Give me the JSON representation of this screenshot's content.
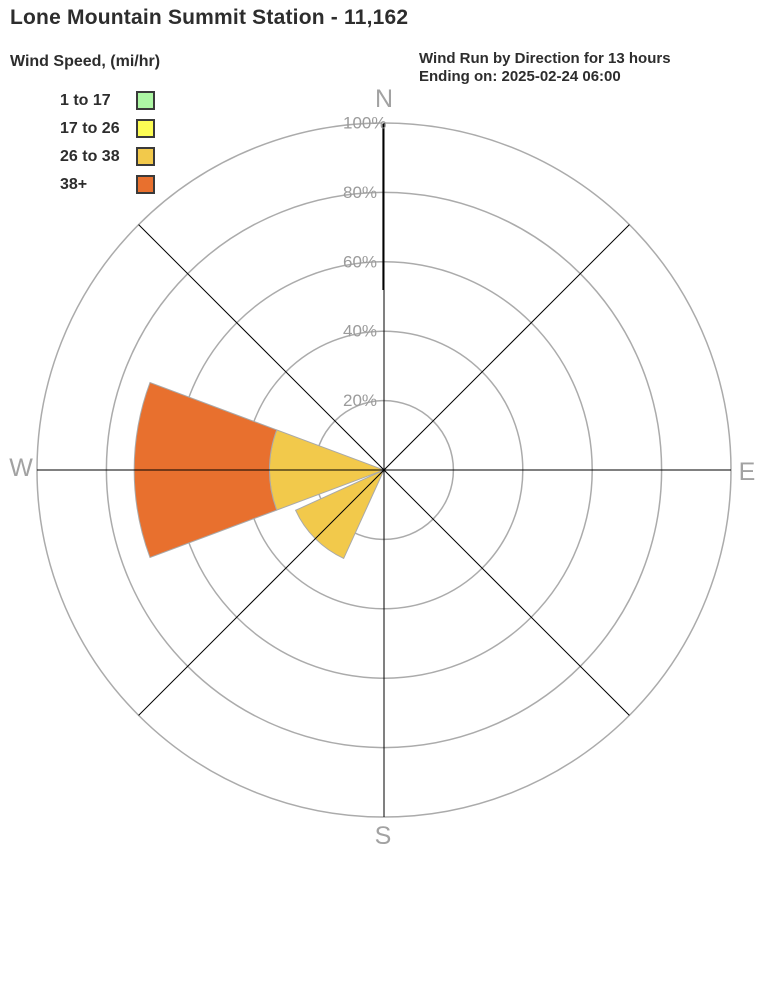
{
  "header": {
    "title": "Lone Mountain Summit Station - 11,162",
    "subtitle_line1": "Wind Run by Direction for 13 hours",
    "subtitle_line2": "Ending on: 2025-02-24 06:00"
  },
  "legend": {
    "title": "Wind Speed, (mi/hr)",
    "swatch_border_color": "#3a3a3a",
    "items": [
      {
        "label": "1 to 17",
        "color": "#adf7a4"
      },
      {
        "label": "17 to 26",
        "color": "#fdfd54"
      },
      {
        "label": "26 to 38",
        "color": "#f2c94b"
      },
      {
        "label": "38+",
        "color": "#e8702e"
      }
    ]
  },
  "chart_data": {
    "type": "wind-rose",
    "title": "Wind Run by Direction for 13 hours Ending on: 2025-02-24 06:00",
    "units": "percent of wind run",
    "ring_ticks_pct": [
      20,
      40,
      60,
      80,
      100
    ],
    "ring_tick_labels": [
      "20%",
      "40%",
      "60%",
      "80%",
      "100%"
    ],
    "rlim": [
      0,
      100
    ],
    "compass_labels": {
      "n": "N",
      "e": "E",
      "s": "S",
      "w": "W"
    },
    "directions": [
      "N",
      "NE",
      "E",
      "SE",
      "S",
      "SW",
      "W",
      "NW"
    ],
    "sector_width_deg": 41,
    "series": [
      {
        "name": "1 to 17",
        "color": "#adf7a4",
        "values_pct": [
          0,
          0,
          0,
          0,
          0,
          0,
          0,
          0
        ]
      },
      {
        "name": "17 to 26",
        "color": "#fdfd54",
        "values_pct": [
          0,
          0,
          0,
          0,
          0,
          0,
          0,
          0
        ]
      },
      {
        "name": "26 to 38",
        "color": "#f2c94b",
        "values_pct": [
          0,
          0,
          0,
          0,
          0,
          28,
          33,
          0
        ]
      },
      {
        "name": "38+",
        "color": "#e8702e",
        "values_pct": [
          0,
          0,
          0,
          0,
          0,
          0,
          39,
          0
        ]
      }
    ],
    "grid_color": "#ababab",
    "wedge_stroke_color": "#a9a9a9",
    "spoke_color": "#000000",
    "ring_label_color": "#9b9b9b",
    "compass_label_color": "#a2a2a2"
  }
}
